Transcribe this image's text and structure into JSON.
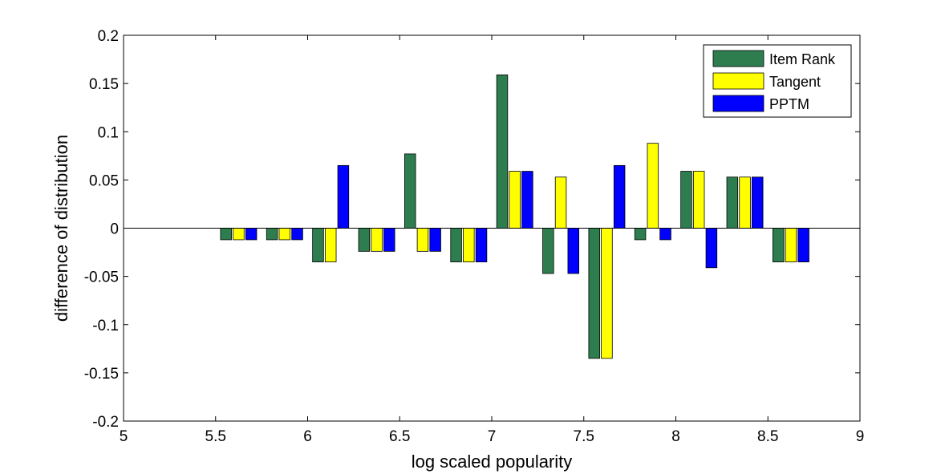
{
  "chart_data": {
    "type": "bar",
    "xlabel": "log scaled popularity",
    "ylabel": "difference of distribution",
    "xlim": [
      5,
      9
    ],
    "ylim": [
      -0.2,
      0.2
    ],
    "xticks": [
      "5",
      "5.5",
      "6",
      "6.5",
      "7",
      "7.5",
      "8",
      "8.5",
      "9"
    ],
    "yticks": [
      "-0.2",
      "-0.15",
      "-0.1",
      "-0.05",
      "0",
      "0.05",
      "0.1",
      "0.15",
      "0.2"
    ],
    "grid": false,
    "legend_position": "top-right",
    "x": [
      5.625,
      5.875,
      6.125,
      6.375,
      6.625,
      6.875,
      7.125,
      7.375,
      7.625,
      7.875,
      8.125,
      8.375,
      8.625
    ],
    "series": [
      {
        "name": "Item Rank",
        "color": "#2e7d4f",
        "values": [
          -0.012,
          -0.012,
          -0.035,
          -0.024,
          0.077,
          -0.035,
          0.159,
          -0.047,
          -0.135,
          -0.012,
          0.059,
          0.053,
          -0.035
        ]
      },
      {
        "name": "Tangent",
        "color": "#ffff00",
        "values": [
          -0.012,
          -0.012,
          -0.035,
          -0.024,
          -0.024,
          -0.035,
          0.059,
          0.053,
          -0.135,
          0.088,
          0.059,
          0.053,
          -0.035
        ]
      },
      {
        "name": "PPTM",
        "color": "#0000ff",
        "values": [
          -0.012,
          -0.012,
          0.065,
          -0.024,
          -0.024,
          -0.035,
          0.059,
          -0.047,
          0.065,
          -0.012,
          -0.041,
          0.053,
          -0.035
        ]
      }
    ]
  }
}
